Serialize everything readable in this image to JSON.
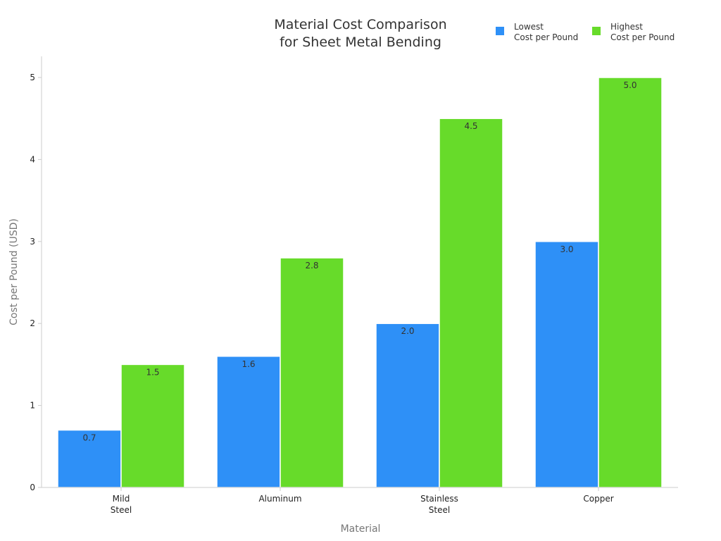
{
  "chart_data": {
    "type": "bar",
    "title": [
      "Material Cost Comparison",
      "for Sheet Metal Bending"
    ],
    "xlabel": "Material",
    "ylabel": "Cost per Pound (USD)",
    "categories": [
      [
        "Mild",
        "Steel"
      ],
      [
        "Aluminum"
      ],
      [
        "Stainless",
        "Steel"
      ],
      [
        "Copper"
      ]
    ],
    "series": [
      {
        "name": [
          "Lowest",
          "Cost per Pound"
        ],
        "values": [
          0.7,
          1.6,
          2.0,
          3.0
        ],
        "color": "#2e90f7"
      },
      {
        "name": [
          "Highest",
          "Cost per Pound"
        ],
        "values": [
          1.5,
          2.8,
          4.5,
          5.0
        ],
        "color": "#67db2a"
      }
    ],
    "data_labels": [
      [
        "0.7",
        "1.6",
        "2.0",
        "3.0"
      ],
      [
        "1.5",
        "2.8",
        "4.5",
        "5.0"
      ]
    ],
    "yticks": [
      "0",
      "1",
      "2",
      "3",
      "4",
      "5"
    ],
    "ylim": [
      0,
      5.25
    ],
    "grid": false,
    "legend_position": "top-right"
  }
}
